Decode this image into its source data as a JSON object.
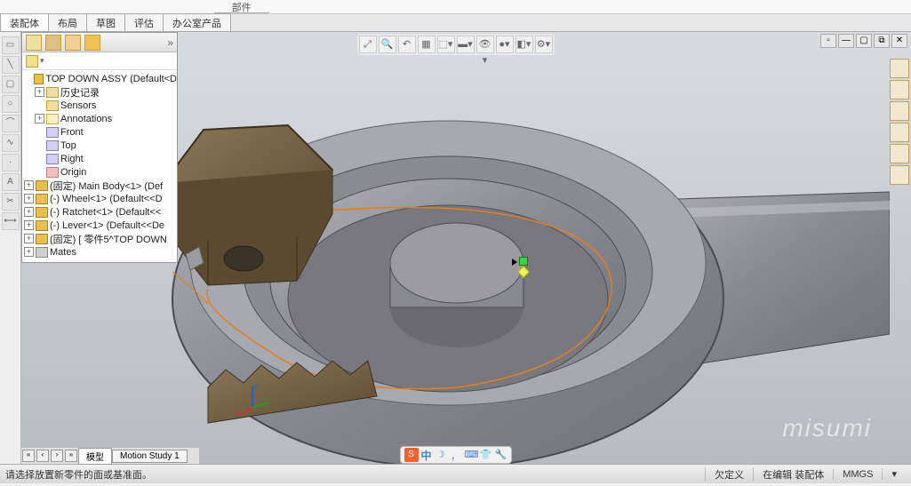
{
  "topbar": {
    "parts_label": "部件"
  },
  "tabs": {
    "items": [
      "装配体",
      "布局",
      "草图",
      "评估",
      "办公室产品"
    ],
    "active_index": 0
  },
  "tree": {
    "root": "TOP DOWN ASSY  (Default<D",
    "items": [
      {
        "label": "历史记录",
        "icon": "folder",
        "exp": "+",
        "indent": 1
      },
      {
        "label": "Sensors",
        "icon": "folder",
        "exp": "",
        "indent": 1
      },
      {
        "label": "Annotations",
        "icon": "annot",
        "exp": "+",
        "indent": 1
      },
      {
        "label": "Front",
        "icon": "plane",
        "exp": "",
        "indent": 1
      },
      {
        "label": "Top",
        "icon": "plane",
        "exp": "",
        "indent": 1
      },
      {
        "label": "Right",
        "icon": "plane",
        "exp": "",
        "indent": 1
      },
      {
        "label": "Origin",
        "icon": "origin",
        "exp": "",
        "indent": 1
      },
      {
        "label": "(固定) Main Body<1> (Def",
        "icon": "part",
        "exp": "+",
        "indent": 0
      },
      {
        "label": "(-) Wheel<1> (Default<<D",
        "icon": "part",
        "exp": "+",
        "indent": 0
      },
      {
        "label": "(-) Ratchet<1> (Default<<",
        "icon": "part",
        "exp": "+",
        "indent": 0
      },
      {
        "label": "(-) Lever<1> (Default<<De",
        "icon": "part",
        "exp": "+",
        "indent": 0
      },
      {
        "label": "(固定) [ 零件5^TOP DOWN",
        "icon": "part",
        "exp": "+",
        "indent": 0
      },
      {
        "label": "Mates",
        "icon": "mates",
        "exp": "+",
        "indent": 0
      }
    ]
  },
  "bottom_tabs": {
    "items": [
      "模型",
      "Motion Study 1"
    ],
    "active_index": 0
  },
  "status": {
    "prompt": "请选择放置新零件的面或基准面。",
    "seg1": "欠定义",
    "seg2": "在编辑 装配体",
    "units": "MMGS"
  },
  "ime": {
    "s": "S",
    "lang": "中"
  },
  "watermark": "misumi",
  "colors": {
    "body_fill": "#8a8a90",
    "body_edge": "#4a4a50",
    "hex_fill": "#6b5a40",
    "hex_edge": "#3a3020",
    "gear_fill": "#7a6848",
    "sketch": "#e08020",
    "bg_top": "#d8dce0",
    "bg_bot": "#b8bcc0"
  }
}
